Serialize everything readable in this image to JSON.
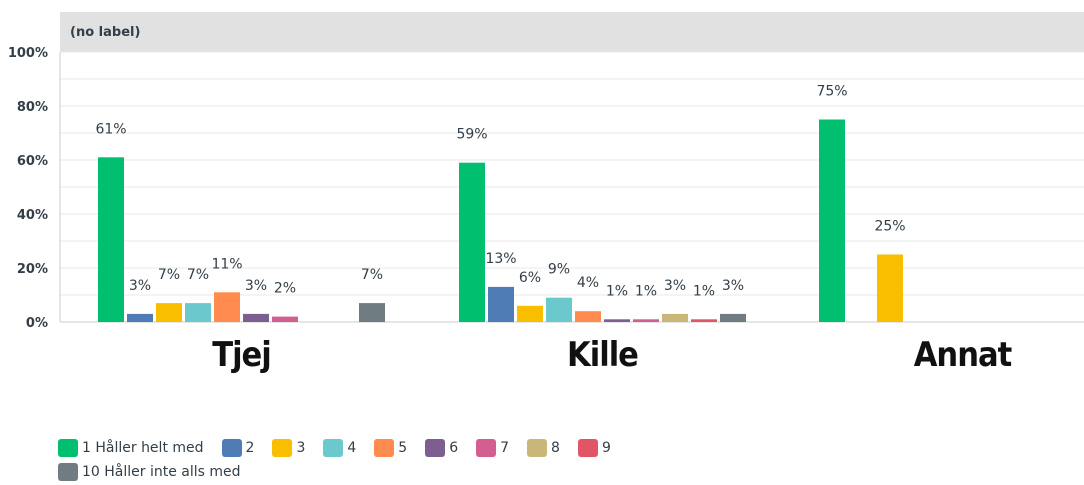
{
  "chart_data": {
    "type": "bar",
    "title": "(no label)",
    "categories": [
      "Tjej",
      "Kille",
      "Annat"
    ],
    "ylim": [
      0,
      100
    ],
    "yticks": [
      "0%",
      "20%",
      "40%",
      "60%",
      "80%",
      "100%"
    ],
    "grid": true,
    "legend_position": "bottom-left",
    "series": [
      {
        "name": "1 Håller helt med",
        "color": "#00bf6f",
        "values": [
          61,
          59,
          75
        ],
        "labels": [
          "61%",
          "59%",
          "75%"
        ]
      },
      {
        "name": "2",
        "color": "#507cb6",
        "values": [
          3,
          13,
          null
        ],
        "labels": [
          "3%",
          "13%",
          ""
        ]
      },
      {
        "name": "3",
        "color": "#f9be00",
        "values": [
          7,
          6,
          25
        ],
        "labels": [
          "7%",
          "6%",
          "25%"
        ]
      },
      {
        "name": "4",
        "color": "#6bc8cd",
        "values": [
          7,
          9,
          null
        ],
        "labels": [
          "7%",
          "9%",
          ""
        ]
      },
      {
        "name": "5",
        "color": "#ff8b4f",
        "values": [
          11,
          4,
          null
        ],
        "labels": [
          "11%",
          "4%",
          ""
        ]
      },
      {
        "name": "6",
        "color": "#7d5e90",
        "values": [
          3,
          1,
          null
        ],
        "labels": [
          "3%",
          "1%",
          ""
        ]
      },
      {
        "name": "7",
        "color": "#d25f90",
        "values": [
          2,
          1,
          null
        ],
        "labels": [
          "2%",
          "1%",
          ""
        ]
      },
      {
        "name": "8",
        "color": "#c9b77a",
        "values": [
          null,
          3,
          null
        ],
        "labels": [
          "",
          "3%",
          ""
        ]
      },
      {
        "name": "9",
        "color": "#e05666",
        "values": [
          null,
          1,
          null
        ],
        "labels": [
          "",
          "1%",
          ""
        ]
      },
      {
        "name": "10 Håller inte alls med",
        "color": "#6f7d83",
        "values": [
          7,
          3,
          null
        ],
        "labels": [
          "7%",
          "3%",
          ""
        ]
      }
    ],
    "colors": {
      "header_band": "#e1e1e1",
      "gridline": "#e8e8e8",
      "axis": "#cccccc",
      "text": "#333e48"
    }
  }
}
